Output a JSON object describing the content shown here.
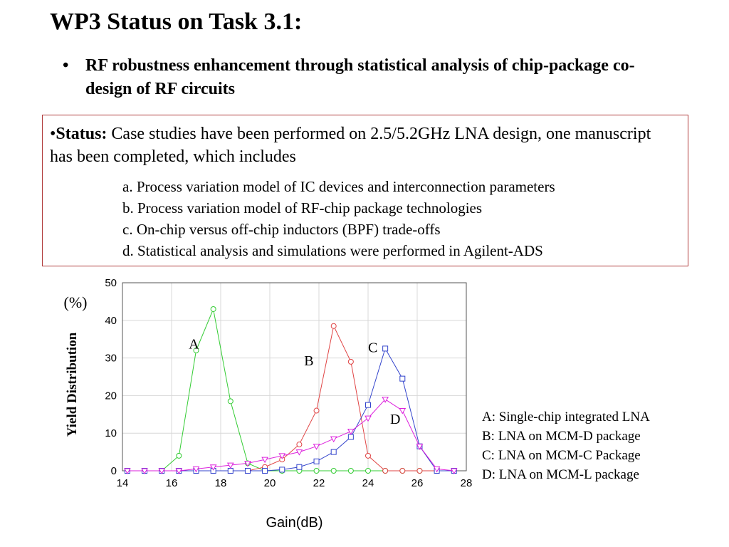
{
  "slide": {
    "title": "WP3 Status on Task 3.1:",
    "bullet": "RF robustness enhancement through statistical analysis of chip-package co-design of RF circuits",
    "bullet_marker": "•",
    "status": {
      "marker": "•",
      "label": "Status:",
      "text": " Case studies have been performed on 2.5/5.2GHz LNA design, one manuscript has been completed, which includes",
      "items": [
        "a. Process variation model of IC devices and interconnection parameters",
        "b. Process variation model of RF-chip package technologies",
        "c. On-chip versus off-chip inductors (BPF) trade-offs",
        "d. Statistical analysis and simulations were performed in Agilent-ADS"
      ]
    },
    "legend": [
      "A: Single-chip integrated LNA",
      "B: LNA on MCM-D package",
      "C: LNA on MCM-C Package",
      "D: LNA on MCM-L package"
    ]
  },
  "chart_data": {
    "type": "line",
    "xlabel": "Gain(dB)",
    "ylabel": "Yield Distribution",
    "yunit": "(%)",
    "xlim": [
      14,
      28
    ],
    "ylim": [
      0,
      50
    ],
    "xticks": [
      14,
      16,
      18,
      20,
      22,
      24,
      26,
      28
    ],
    "yticks": [
      0,
      10,
      20,
      30,
      40,
      50
    ],
    "grid": true,
    "series": [
      {
        "name": "A",
        "color": "#33cc33",
        "marker": "circle",
        "label_at": [
          16.7,
          32.5
        ],
        "points": [
          [
            14.2,
            0
          ],
          [
            14.9,
            0
          ],
          [
            15.6,
            0
          ],
          [
            16.3,
            4
          ],
          [
            17.0,
            32
          ],
          [
            17.7,
            43
          ],
          [
            18.4,
            18.5
          ],
          [
            19.1,
            2
          ],
          [
            19.8,
            0
          ],
          [
            20.5,
            0
          ],
          [
            21.2,
            0
          ],
          [
            21.9,
            0
          ],
          [
            22.6,
            0
          ],
          [
            23.3,
            0
          ],
          [
            24.0,
            0
          ],
          [
            24.7,
            0
          ],
          [
            25.4,
            0
          ],
          [
            26.1,
            0
          ],
          [
            26.8,
            0
          ],
          [
            27.5,
            0
          ]
        ]
      },
      {
        "name": "B",
        "color": "#e04444",
        "marker": "circle",
        "label_at": [
          21.4,
          28.0
        ],
        "points": [
          [
            14.2,
            0
          ],
          [
            14.9,
            0
          ],
          [
            15.6,
            0
          ],
          [
            16.3,
            0
          ],
          [
            17.0,
            0
          ],
          [
            17.7,
            0
          ],
          [
            18.4,
            0
          ],
          [
            19.1,
            0
          ],
          [
            19.8,
            1
          ],
          [
            20.5,
            3
          ],
          [
            21.2,
            7
          ],
          [
            21.9,
            16
          ],
          [
            22.6,
            38.5
          ],
          [
            23.3,
            29
          ],
          [
            24.0,
            4
          ],
          [
            24.7,
            0
          ],
          [
            25.4,
            0
          ],
          [
            26.1,
            0
          ],
          [
            26.8,
            0
          ],
          [
            27.5,
            0
          ]
        ]
      },
      {
        "name": "C",
        "color": "#3344cc",
        "marker": "square",
        "label_at": [
          24.0,
          31.5
        ],
        "points": [
          [
            14.2,
            0
          ],
          [
            14.9,
            0
          ],
          [
            15.6,
            0
          ],
          [
            16.3,
            0
          ],
          [
            17.0,
            0
          ],
          [
            17.7,
            0
          ],
          [
            18.4,
            0
          ],
          [
            19.1,
            0
          ],
          [
            19.8,
            0
          ],
          [
            20.5,
            0.3
          ],
          [
            21.2,
            1
          ],
          [
            21.9,
            2.5
          ],
          [
            22.6,
            5
          ],
          [
            23.3,
            9
          ],
          [
            24.0,
            17.5
          ],
          [
            24.7,
            32.5
          ],
          [
            25.4,
            24.5
          ],
          [
            26.1,
            6.5
          ],
          [
            26.8,
            0
          ],
          [
            27.5,
            0
          ]
        ]
      },
      {
        "name": "D",
        "color": "#dd22dd",
        "marker": "triangle-down",
        "label_at": [
          24.9,
          12.5
        ],
        "points": [
          [
            14.2,
            0
          ],
          [
            14.9,
            0
          ],
          [
            15.6,
            0
          ],
          [
            16.3,
            0
          ],
          [
            17.0,
            0.5
          ],
          [
            17.7,
            1
          ],
          [
            18.4,
            1.5
          ],
          [
            19.1,
            2
          ],
          [
            19.8,
            3
          ],
          [
            20.5,
            4
          ],
          [
            21.2,
            5
          ],
          [
            21.9,
            6.5
          ],
          [
            22.6,
            8.5
          ],
          [
            23.3,
            10.5
          ],
          [
            24.0,
            14
          ],
          [
            24.7,
            19
          ],
          [
            25.4,
            16
          ],
          [
            26.1,
            6.5
          ],
          [
            26.8,
            0.5
          ],
          [
            27.5,
            0
          ]
        ]
      }
    ]
  }
}
